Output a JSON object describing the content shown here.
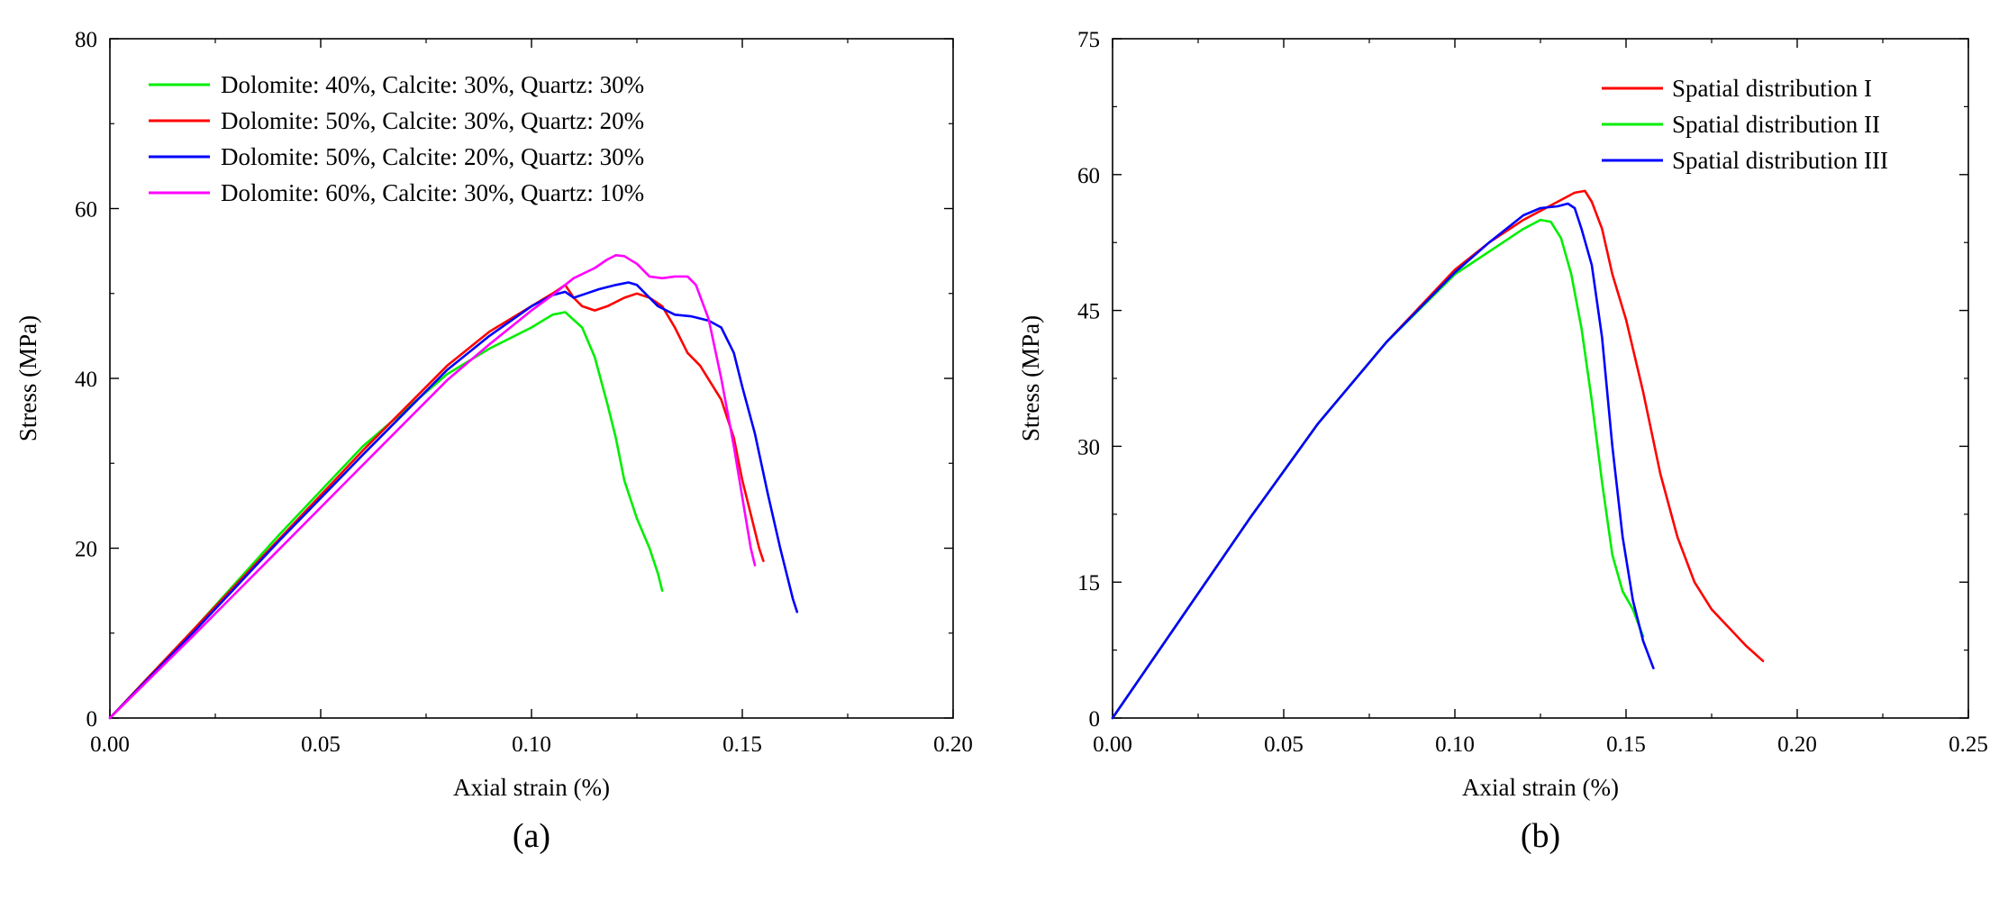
{
  "chart_data": [
    {
      "type": "line",
      "panel_label": "(a)",
      "xlabel": "Axial strain (%)",
      "ylabel": "Stress (MPa)",
      "xlim": [
        0,
        0.2
      ],
      "ylim": [
        0,
        80
      ],
      "xticks": [
        "0.00",
        "0.05",
        "0.10",
        "0.15",
        "0.20"
      ],
      "yticks": [
        "0",
        "20",
        "40",
        "60",
        "80"
      ],
      "grid": false,
      "legend_position": "top-left",
      "series": [
        {
          "name": "Dolomite: 40%, Calcite: 30%, Quartz:  30%",
          "color": "#00ee00",
          "x": [
            0,
            0.02,
            0.04,
            0.06,
            0.08,
            0.09,
            0.1,
            0.105,
            0.108,
            0.112,
            0.115,
            0.118,
            0.12,
            0.122,
            0.125,
            0.128,
            0.13,
            0.131
          ],
          "y": [
            0,
            10.5,
            21.5,
            32,
            40.5,
            43.5,
            46,
            47.5,
            47.8,
            46,
            42.5,
            37,
            33,
            28,
            23.5,
            20,
            17,
            15
          ]
        },
        {
          "name": "Dolomite: 50%, Calcite: 30%, Quartz:  20%",
          "color": "#ff0000",
          "x": [
            0,
            0.02,
            0.04,
            0.06,
            0.08,
            0.09,
            0.1,
            0.105,
            0.108,
            0.11,
            0.112,
            0.115,
            0.118,
            0.122,
            0.125,
            0.128,
            0.131,
            0.134,
            0.137,
            0.14,
            0.145,
            0.148,
            0.15,
            0.152,
            0.154,
            0.155
          ],
          "y": [
            0,
            10.5,
            21,
            31.5,
            41.5,
            45.5,
            48.5,
            50,
            51,
            49.5,
            48.5,
            48,
            48.5,
            49.5,
            50,
            49.5,
            48.5,
            46,
            43,
            41.5,
            37.5,
            33,
            28,
            24,
            20,
            18.5
          ]
        },
        {
          "name": "Dolomite: 50%, Calcite: 20%, Quartz:  30%",
          "color": "#0000ff",
          "x": [
            0,
            0.02,
            0.04,
            0.06,
            0.08,
            0.09,
            0.1,
            0.105,
            0.108,
            0.11,
            0.113,
            0.116,
            0.12,
            0.123,
            0.125,
            0.128,
            0.13,
            0.134,
            0.138,
            0.142,
            0.145,
            0.148,
            0.15,
            0.153,
            0.156,
            0.159,
            0.162,
            0.163
          ],
          "y": [
            0,
            10.2,
            20.8,
            31,
            41,
            45,
            48.5,
            49.8,
            50.2,
            49.5,
            50,
            50.5,
            51,
            51.3,
            51,
            49.5,
            48.5,
            47.5,
            47.3,
            46.8,
            46,
            43,
            39,
            33.5,
            26.5,
            20,
            14,
            12.5
          ]
        },
        {
          "name": "Dolomite: 60%, Calcite: 30%, Quartz:  10%",
          "color": "#ff00ff",
          "x": [
            0,
            0.02,
            0.04,
            0.06,
            0.08,
            0.09,
            0.1,
            0.105,
            0.108,
            0.11,
            0.115,
            0.118,
            0.12,
            0.122,
            0.125,
            0.128,
            0.131,
            0.134,
            0.137,
            0.139,
            0.142,
            0.145,
            0.148,
            0.15,
            0.152,
            0.153
          ],
          "y": [
            0,
            9.8,
            19.8,
            29.8,
            39.8,
            44,
            48,
            49.8,
            51,
            51.8,
            53,
            54,
            54.5,
            54.4,
            53.5,
            52,
            51.8,
            52,
            52,
            51,
            47,
            40,
            32,
            26,
            20,
            18
          ]
        }
      ]
    },
    {
      "type": "line",
      "panel_label": "(b)",
      "xlabel": "Axial strain (%)",
      "ylabel": "Stress (MPa)",
      "xlim": [
        0,
        0.25
      ],
      "ylim": [
        0,
        75
      ],
      "xticks": [
        "0.00",
        "0.05",
        "0.10",
        "0.15",
        "0.20",
        "0.25"
      ],
      "yticks": [
        "0",
        "15",
        "30",
        "45",
        "60",
        "75"
      ],
      "grid": false,
      "legend_position": "top-right",
      "series": [
        {
          "name": "Spatial distribution I",
          "color": "#ff0000",
          "x": [
            0,
            0.02,
            0.04,
            0.06,
            0.08,
            0.1,
            0.11,
            0.12,
            0.13,
            0.135,
            0.138,
            0.14,
            0.143,
            0.146,
            0.15,
            0.155,
            0.16,
            0.165,
            0.17,
            0.175,
            0.18,
            0.185,
            0.19
          ],
          "y": [
            0,
            11,
            22,
            32.5,
            41.5,
            49.5,
            52.5,
            55,
            57,
            58,
            58.2,
            57,
            54,
            49,
            44,
            36,
            27,
            20,
            15,
            12,
            10,
            8,
            6.3
          ]
        },
        {
          "name": "Spatial distribution II",
          "color": "#00ee00",
          "x": [
            0,
            0.02,
            0.04,
            0.06,
            0.08,
            0.1,
            0.11,
            0.12,
            0.125,
            0.128,
            0.131,
            0.134,
            0.137,
            0.14,
            0.143,
            0.146,
            0.149,
            0.152,
            0.155
          ],
          "y": [
            0,
            11,
            22,
            32.5,
            41.5,
            49,
            51.5,
            54,
            55,
            54.8,
            53,
            49,
            43,
            35,
            26,
            18,
            14,
            12,
            9
          ]
        },
        {
          "name": "Spatial distribution III",
          "color": "#0000ff",
          "x": [
            0,
            0.02,
            0.04,
            0.06,
            0.08,
            0.1,
            0.11,
            0.12,
            0.125,
            0.13,
            0.133,
            0.135,
            0.137,
            0.14,
            0.143,
            0.146,
            0.149,
            0.152,
            0.155,
            0.158
          ],
          "y": [
            0,
            11,
            22,
            32.5,
            41.5,
            49.2,
            52.5,
            55.5,
            56.3,
            56.5,
            56.8,
            56.3,
            54,
            50,
            42,
            30,
            20,
            13,
            8.5,
            5.5
          ]
        }
      ]
    }
  ]
}
